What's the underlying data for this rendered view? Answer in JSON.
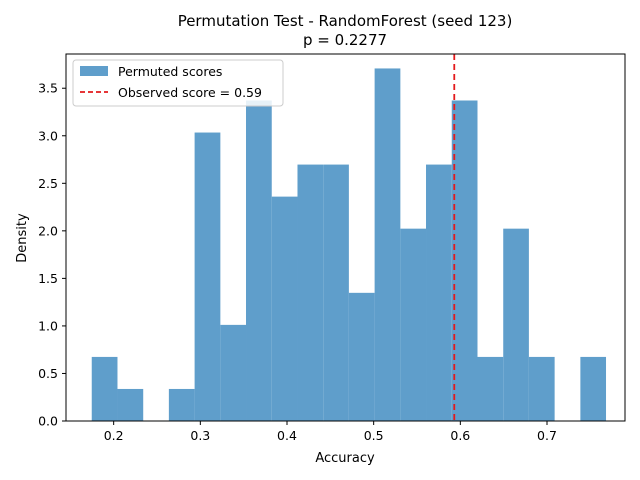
{
  "chart_data": {
    "type": "bar",
    "title": "Permutation Test - RandomForest (seed 123)",
    "subtitle": "p = 0.2277",
    "xlabel": "Accuracy",
    "ylabel": "Density",
    "xlim": [
      0.145,
      0.79
    ],
    "ylim": [
      0,
      3.86
    ],
    "x_ticks": [
      {
        "value": 0.2,
        "label": "0.2"
      },
      {
        "value": 0.3,
        "label": "0.3"
      },
      {
        "value": 0.4,
        "label": "0.4"
      },
      {
        "value": 0.5,
        "label": "0.5"
      },
      {
        "value": 0.6,
        "label": "0.6"
      },
      {
        "value": 0.7,
        "label": "0.7"
      }
    ],
    "y_ticks": [
      {
        "value": 0.0,
        "label": "0.0"
      },
      {
        "value": 0.5,
        "label": "0.5"
      },
      {
        "value": 1.0,
        "label": "1.0"
      },
      {
        "value": 1.5,
        "label": "1.5"
      },
      {
        "value": 2.0,
        "label": "2.0"
      },
      {
        "value": 2.5,
        "label": "2.5"
      },
      {
        "value": 3.0,
        "label": "3.0"
      },
      {
        "value": 3.5,
        "label": "3.5"
      }
    ],
    "series": [
      {
        "name": "Permuted scores",
        "color": "#5f9ecb",
        "bins": [
          {
            "left": 0.1747,
            "right": 0.2044,
            "value": 0.674
          },
          {
            "left": 0.2044,
            "right": 0.2341,
            "value": 0.337
          },
          {
            "left": 0.2341,
            "right": 0.2637,
            "value": 0.0
          },
          {
            "left": 0.2637,
            "right": 0.2934,
            "value": 0.337
          },
          {
            "left": 0.2934,
            "right": 0.3231,
            "value": 3.034
          },
          {
            "left": 0.3231,
            "right": 0.3527,
            "value": 1.011
          },
          {
            "left": 0.3527,
            "right": 0.3824,
            "value": 3.371
          },
          {
            "left": 0.3824,
            "right": 0.4121,
            "value": 2.36
          },
          {
            "left": 0.4121,
            "right": 0.4418,
            "value": 2.697
          },
          {
            "left": 0.4418,
            "right": 0.4714,
            "value": 2.697
          },
          {
            "left": 0.4714,
            "right": 0.5011,
            "value": 1.348
          },
          {
            "left": 0.5011,
            "right": 0.5308,
            "value": 3.708
          },
          {
            "left": 0.5308,
            "right": 0.5604,
            "value": 2.023
          },
          {
            "left": 0.5604,
            "right": 0.5901,
            "value": 2.697
          },
          {
            "left": 0.5901,
            "right": 0.6198,
            "value": 3.371
          },
          {
            "left": 0.6198,
            "right": 0.6495,
            "value": 0.674
          },
          {
            "left": 0.6495,
            "right": 0.6791,
            "value": 2.023
          },
          {
            "left": 0.6791,
            "right": 0.7088,
            "value": 0.674
          },
          {
            "left": 0.7088,
            "right": 0.7385,
            "value": 0.0
          },
          {
            "left": 0.7385,
            "right": 0.7681,
            "value": 0.674
          }
        ]
      }
    ],
    "reference_line": {
      "name": "Observed score = 0.59",
      "x": 0.593,
      "color": "#e31a1c",
      "style": "dashed"
    },
    "legend": {
      "position": "top-left"
    },
    "grid": false
  }
}
